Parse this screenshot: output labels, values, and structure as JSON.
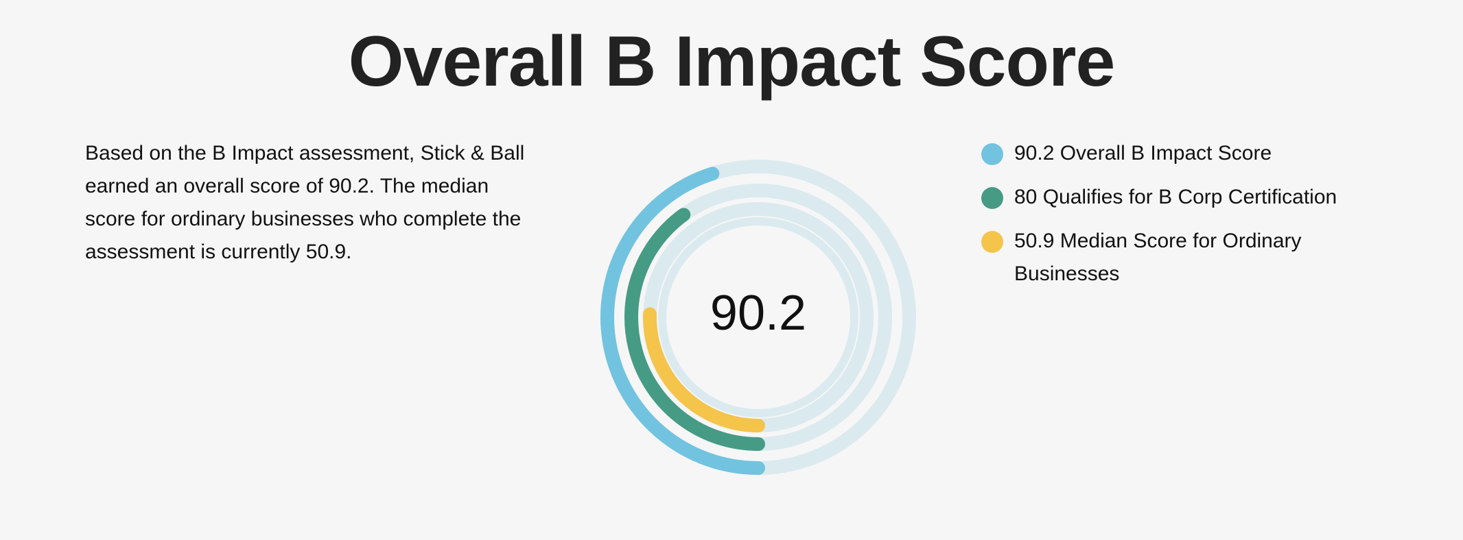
{
  "title": "Overall B Impact Score",
  "description": "Based on the B Impact assessment, Stick & Ball earned an overall score of 90.2. The median score for ordinary businesses who complete the assessment is currently 50.9.",
  "chart_data": {
    "type": "radial-bar",
    "title": "Overall B Impact Score",
    "center_label": "90.2",
    "max": 200,
    "track_color": "#dbeaef",
    "series": [
      {
        "name": "Overall B Impact Score",
        "value": 90.2,
        "color": "#72c3df",
        "legend": "90.2 Overall B Impact Score"
      },
      {
        "name": "Qualifies for B Corp Certification",
        "value": 80,
        "color": "#469b85",
        "legend": "80 Qualifies for B Corp Certification"
      },
      {
        "name": "Median Score for Ordinary Businesses",
        "value": 50.9,
        "color": "#f4c44b",
        "legend": "50.9 Median Score for Ordinary Businesses"
      }
    ]
  }
}
